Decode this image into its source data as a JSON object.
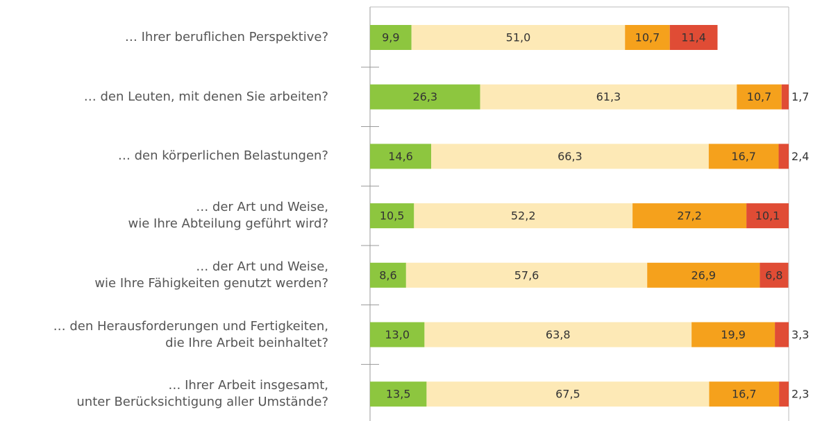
{
  "chart_data": {
    "type": "stacked-bar-horizontal",
    "categories": [
      "… Ihrer beruflichen Perspektive?",
      "… den Leuten, mit denen Sie arbeiten?",
      "… den körperlichen Belastungen?",
      "… der Art und Weise,\nwie Ihre Abteilung geführt wird?",
      "… der Art und Weise,\nwie Ihre Fähigkeiten genutzt werden?",
      "… den Herausforderungen und Fertigkeiten,\ndie Ihre Arbeit beinhaltet?",
      "… Ihrer Arbeit insgesamt,\nunter Berücksichtigung aller Umstände?"
    ],
    "xlim": [
      0,
      100
    ],
    "series": [
      {
        "color": "#8dc63f",
        "values": [
          9.9,
          26.3,
          14.6,
          10.5,
          8.6,
          13.0,
          13.5
        ],
        "value_labels": [
          "9,9",
          "26,3",
          "14,6",
          "10,5",
          "8,6",
          "13,0",
          "13,5"
        ]
      },
      {
        "color": "#fde9b6",
        "values": [
          51.0,
          61.3,
          66.3,
          52.2,
          57.6,
          63.8,
          67.5
        ],
        "value_labels": [
          "51,0",
          "61,3",
          "66,3",
          "52,2",
          "57,6",
          "63,8",
          "67,5"
        ]
      },
      {
        "color": "#f5a11c",
        "values": [
          10.7,
          10.7,
          16.7,
          27.2,
          26.9,
          19.9,
          16.7
        ],
        "value_labels": [
          "10,7",
          "10,7",
          "16,7",
          "27,2",
          "26,9",
          "19,9",
          "16,7"
        ]
      },
      {
        "color": "#e04c35",
        "values": [
          11.4,
          1.7,
          2.4,
          10.1,
          6.8,
          3.3,
          2.3
        ],
        "value_labels": [
          "11,4",
          "1,7",
          "2,4",
          "10,1",
          "6,8",
          "3,3",
          "2,3"
        ]
      }
    ]
  }
}
